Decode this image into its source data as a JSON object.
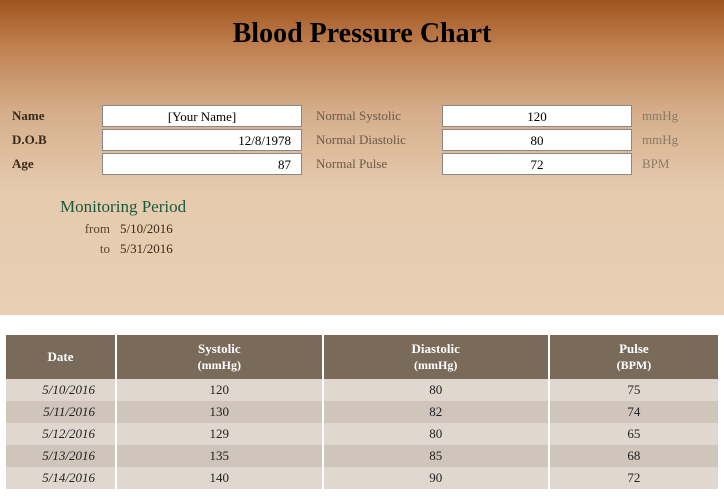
{
  "title": "Blood Pressure Chart",
  "patient": {
    "name_label": "Name",
    "name_value": "[Your Name]",
    "dob_label": "D.O.B",
    "dob_value": "12/8/1978",
    "age_label": "Age",
    "age_value": "87"
  },
  "normals": {
    "systolic_label": "Normal Systolic",
    "systolic_value": "120",
    "systolic_unit": "mmHg",
    "diastolic_label": "Normal Diastolic",
    "diastolic_value": "80",
    "diastolic_unit": "mmHg",
    "pulse_label": "Normal Pulse",
    "pulse_value": "72",
    "pulse_unit": "BPM"
  },
  "monitoring": {
    "title": "Monitoring Period",
    "from_label": "from",
    "from_value": "5/10/2016",
    "to_label": "to",
    "to_value": "5/31/2016"
  },
  "table": {
    "headers": {
      "date": "Date",
      "systolic": "Systolic",
      "systolic_unit": "(mmHg)",
      "diastolic": "Diastolic",
      "diastolic_unit": "(mmHg)",
      "pulse": "Pulse",
      "pulse_unit": "(BPM)"
    },
    "rows": [
      {
        "date": "5/10/2016",
        "systolic": "120",
        "diastolic": "80",
        "pulse": "75"
      },
      {
        "date": "5/11/2016",
        "systolic": "130",
        "diastolic": "82",
        "pulse": "74"
      },
      {
        "date": "5/12/2016",
        "systolic": "129",
        "diastolic": "80",
        "pulse": "65"
      },
      {
        "date": "5/13/2016",
        "systolic": "135",
        "diastolic": "85",
        "pulse": "68"
      },
      {
        "date": "5/14/2016",
        "systolic": "140",
        "diastolic": "90",
        "pulse": "72"
      }
    ]
  },
  "colors": {
    "header_bg": "#7a6a5a",
    "row_odd": "#e0d8cf",
    "row_even": "#cfc5ba",
    "monitoring_title": "#1a5a3a"
  }
}
